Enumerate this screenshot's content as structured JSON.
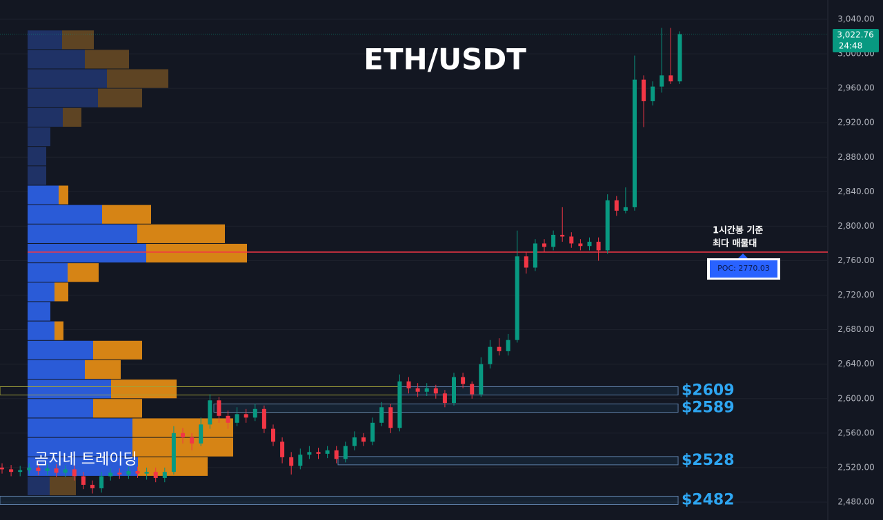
{
  "chart_data": {
    "type": "candlestick",
    "title": "ETH/USDT",
    "watermark": "곰지네 트레이딩",
    "annotation": [
      "1시간봉 기준",
      "최다 매물대"
    ],
    "ylim": [
      2459.2,
      3062.4
    ],
    "yticks": [
      {
        "value": 2480,
        "label": "2,480.00"
      },
      {
        "value": 2520,
        "label": "2,520.00"
      },
      {
        "value": 2560,
        "label": "2,560.00"
      },
      {
        "value": 2600,
        "label": "2,600.00"
      },
      {
        "value": 2640,
        "label": "2,640.00"
      },
      {
        "value": 2680,
        "label": "2,680.00"
      },
      {
        "value": 2720,
        "label": "2,720.00"
      },
      {
        "value": 2760,
        "label": "2,760.00"
      },
      {
        "value": 2800,
        "label": "2,800.00"
      },
      {
        "value": 2840,
        "label": "2,840.00"
      },
      {
        "value": 2880,
        "label": "2,880.00"
      },
      {
        "value": 2920,
        "label": "2,920.00"
      },
      {
        "value": 2960,
        "label": "2,960.00"
      },
      {
        "value": 3000,
        "label": "3,000.00"
      },
      {
        "value": 3040,
        "label": "3,040.00"
      }
    ],
    "grid": true,
    "up_color": "#089981",
    "down_color": "#f23645",
    "open": [
      2520,
      2518,
      2515,
      2517,
      2520,
      2516,
      2519,
      2514,
      2518,
      2510,
      2500,
      2496,
      2510,
      2514,
      2512,
      2516,
      2513,
      2515,
      2508,
      2515,
      2560,
      2555,
      2548,
      2570,
      2598,
      2580,
      2572,
      2582,
      2578,
      2588,
      2565,
      2550,
      2532,
      2522,
      2535,
      2538,
      2536,
      2540,
      2530,
      2545,
      2555,
      2550,
      2572,
      2590,
      2566,
      2620,
      2612,
      2608,
      2612,
      2606,
      2595,
      2625,
      2617,
      2605,
      2640,
      2660,
      2655,
      2668,
      2765,
      2752,
      2780,
      2776,
      2790,
      2788,
      2780,
      2777,
      2782,
      2772,
      2830,
      2818,
      2822,
      2970,
      2945,
      2962,
      2975,
      2968
    ],
    "high": [
      2525,
      2523,
      2522,
      2525,
      2525,
      2524,
      2524,
      2523,
      2523,
      2515,
      2505,
      2515,
      2519,
      2519,
      2521,
      2521,
      2520,
      2520,
      2520,
      2568,
      2566,
      2560,
      2578,
      2605,
      2602,
      2586,
      2590,
      2588,
      2594,
      2592,
      2570,
      2555,
      2538,
      2542,
      2545,
      2543,
      2545,
      2545,
      2550,
      2562,
      2560,
      2578,
      2596,
      2594,
      2628,
      2625,
      2618,
      2618,
      2616,
      2610,
      2630,
      2630,
      2620,
      2648,
      2668,
      2670,
      2675,
      2795,
      2770,
      2785,
      2785,
      2795,
      2822,
      2793,
      2785,
      2787,
      2787,
      2837,
      2835,
      2845,
      2998,
      2975,
      2968,
      3030,
      3030,
      3026
    ],
    "low": [
      2513,
      2510,
      2510,
      2512,
      2511,
      2511,
      2509,
      2509,
      2505,
      2495,
      2490,
      2491,
      2505,
      2507,
      2507,
      2508,
      2506,
      2503,
      2503,
      2512,
      2548,
      2540,
      2545,
      2565,
      2572,
      2565,
      2568,
      2572,
      2574,
      2560,
      2545,
      2525,
      2512,
      2518,
      2530,
      2530,
      2531,
      2525,
      2526,
      2540,
      2545,
      2546,
      2568,
      2560,
      2562,
      2606,
      2602,
      2603,
      2600,
      2590,
      2592,
      2612,
      2600,
      2602,
      2635,
      2650,
      2650,
      2665,
      2745,
      2748,
      2770,
      2772,
      2782,
      2775,
      2772,
      2772,
      2760,
      2768,
      2812,
      2815,
      2818,
      2915,
      2940,
      2955,
      2965,
      2965
    ],
    "close": [
      2518,
      2515,
      2517,
      2520,
      2516,
      2519,
      2514,
      2518,
      2510,
      2500,
      2496,
      2510,
      2514,
      2512,
      2516,
      2513,
      2515,
      2508,
      2515,
      2560,
      2555,
      2548,
      2570,
      2598,
      2580,
      2572,
      2582,
      2578,
      2588,
      2565,
      2550,
      2532,
      2522,
      2535,
      2538,
      2536,
      2540,
      2530,
      2545,
      2555,
      2550,
      2572,
      2590,
      2566,
      2620,
      2612,
      2608,
      2612,
      2606,
      2595,
      2625,
      2617,
      2605,
      2640,
      2660,
      2655,
      2668,
      2765,
      2752,
      2780,
      2776,
      2790,
      2788,
      2780,
      2777,
      2782,
      2772,
      2830,
      2818,
      2822,
      2970,
      2945,
      2962,
      2975,
      2968,
      3022.76
    ],
    "last_price": {
      "value": 3022.76,
      "label": "3,022.76"
    },
    "countdown": "24:48",
    "profile": {
      "bins": [
        3027.5,
        3005,
        2982.5,
        2960,
        2937.5,
        2915,
        2892.5,
        2870,
        2847.5,
        2825,
        2802.5,
        2780,
        2757.5,
        2735,
        2712.5,
        2690,
        2667.5,
        2645,
        2622.5,
        2600,
        2577.5,
        2555,
        2532.5,
        2510,
        2487.5
      ],
      "up": [
        50,
        83,
        115,
        102,
        51,
        33,
        27,
        27,
        45,
        108,
        159,
        172,
        58,
        39,
        33,
        39,
        95,
        83,
        121,
        95,
        152,
        152,
        160,
        32
      ],
      "down": [
        46,
        64,
        89,
        64,
        27,
        0,
        0,
        0,
        14,
        71,
        127,
        146,
        45,
        20,
        0,
        13,
        71,
        52,
        95,
        71,
        146,
        146,
        101,
        38
      ],
      "value_area": [
        2510,
        2847.5
      ],
      "up_color": "#2a5bd7",
      "down_color": "#d68415",
      "up_color_dim": "#1f3266",
      "down_color_dim": "#5e4423"
    },
    "poc": {
      "value": 2770.03,
      "label": "POC: 2770.03",
      "color": "#f23645"
    },
    "levels": [
      {
        "value": 2609,
        "label": "$2609"
      },
      {
        "value": 2589,
        "label": "$2589"
      },
      {
        "value": 2528,
        "label": "$2528"
      },
      {
        "value": 2482,
        "label": "$2482"
      }
    ],
    "level_color": "#2ea6f2"
  }
}
